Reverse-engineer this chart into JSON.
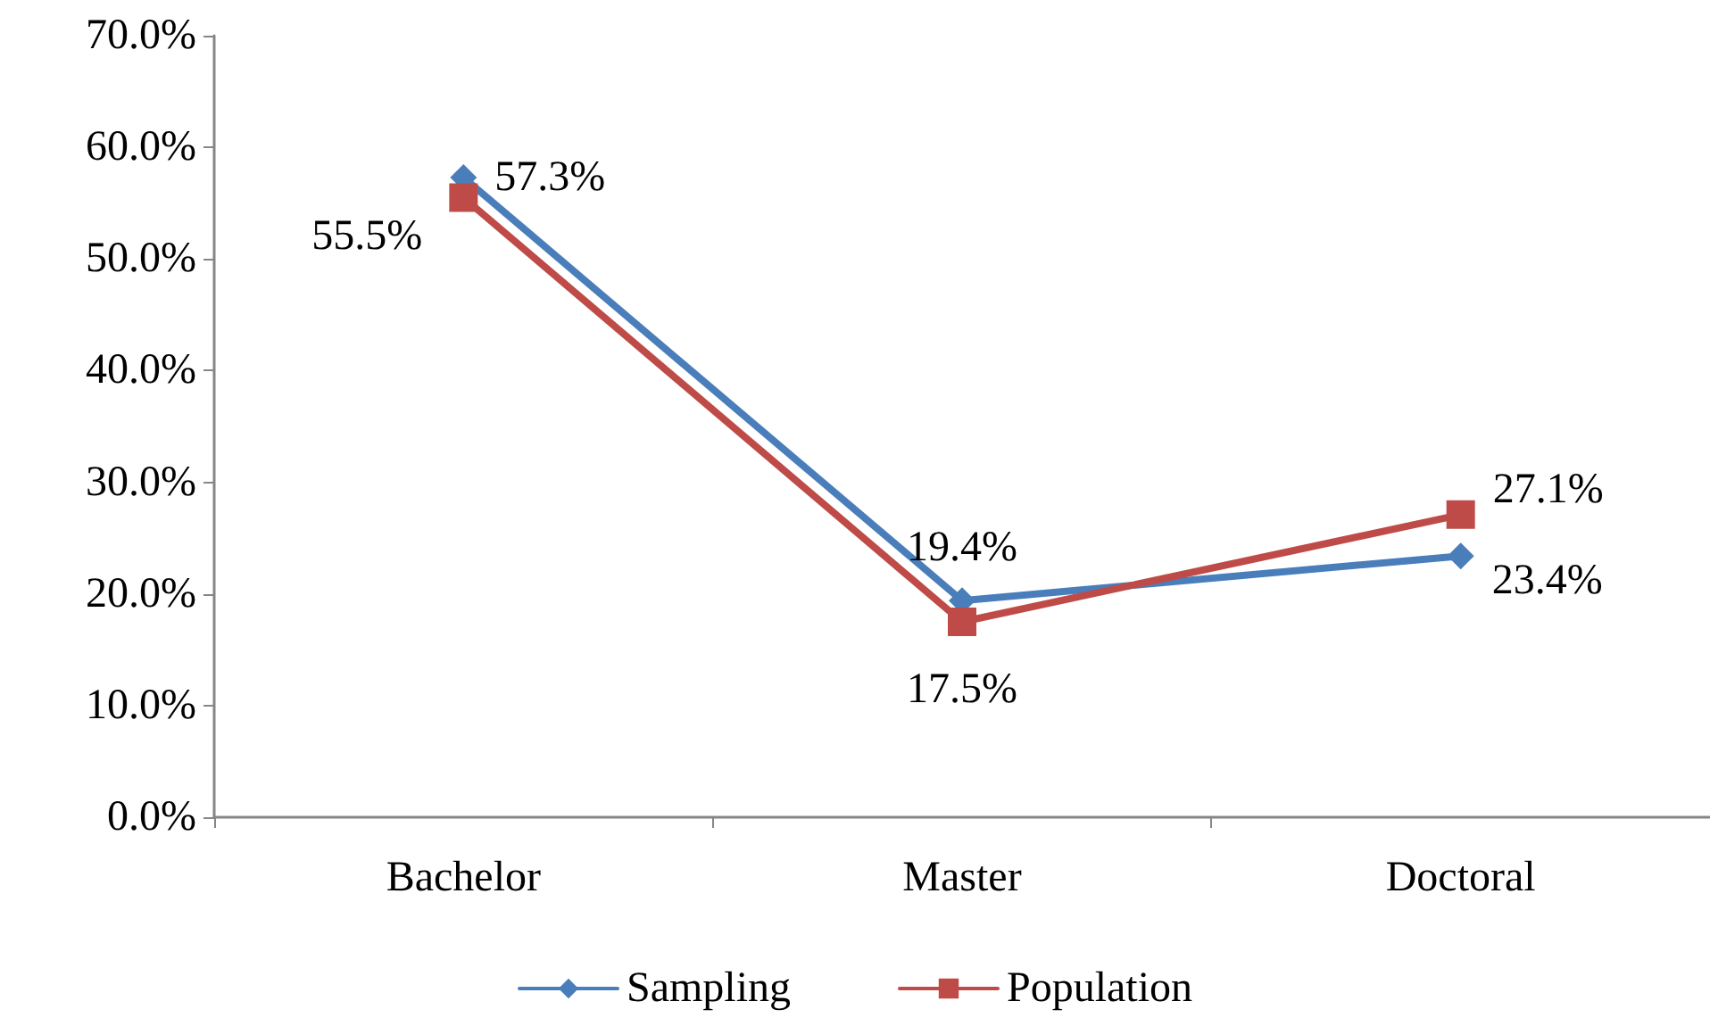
{
  "chart_data": {
    "type": "line",
    "categories": [
      "Bachelor",
      "Master",
      "Doctoral"
    ],
    "series": [
      {
        "name": "Sampling",
        "color": "#4a7ebb",
        "marker": "diamond",
        "values": [
          57.3,
          19.4,
          23.4
        ],
        "value_labels": [
          "57.3%",
          "19.4%",
          "23.4%"
        ]
      },
      {
        "name": "Population",
        "color": "#be4b48",
        "marker": "square",
        "values": [
          55.5,
          17.5,
          27.1
        ],
        "value_labels": [
          "55.5%",
          "17.5%",
          "27.1%"
        ]
      }
    ],
    "ylim": [
      0,
      70
    ],
    "yticks": [
      {
        "value": 0,
        "label": "0.0%"
      },
      {
        "value": 10,
        "label": "10.0%"
      },
      {
        "value": 20,
        "label": "20.0%"
      },
      {
        "value": 30,
        "label": "30.0%"
      },
      {
        "value": 40,
        "label": "40.0%"
      },
      {
        "value": 50,
        "label": "50.0%"
      },
      {
        "value": 60,
        "label": "60.0%"
      },
      {
        "value": 70,
        "label": "70.0%"
      }
    ],
    "grid": false,
    "legend": "bottom",
    "line_style": "solid"
  }
}
